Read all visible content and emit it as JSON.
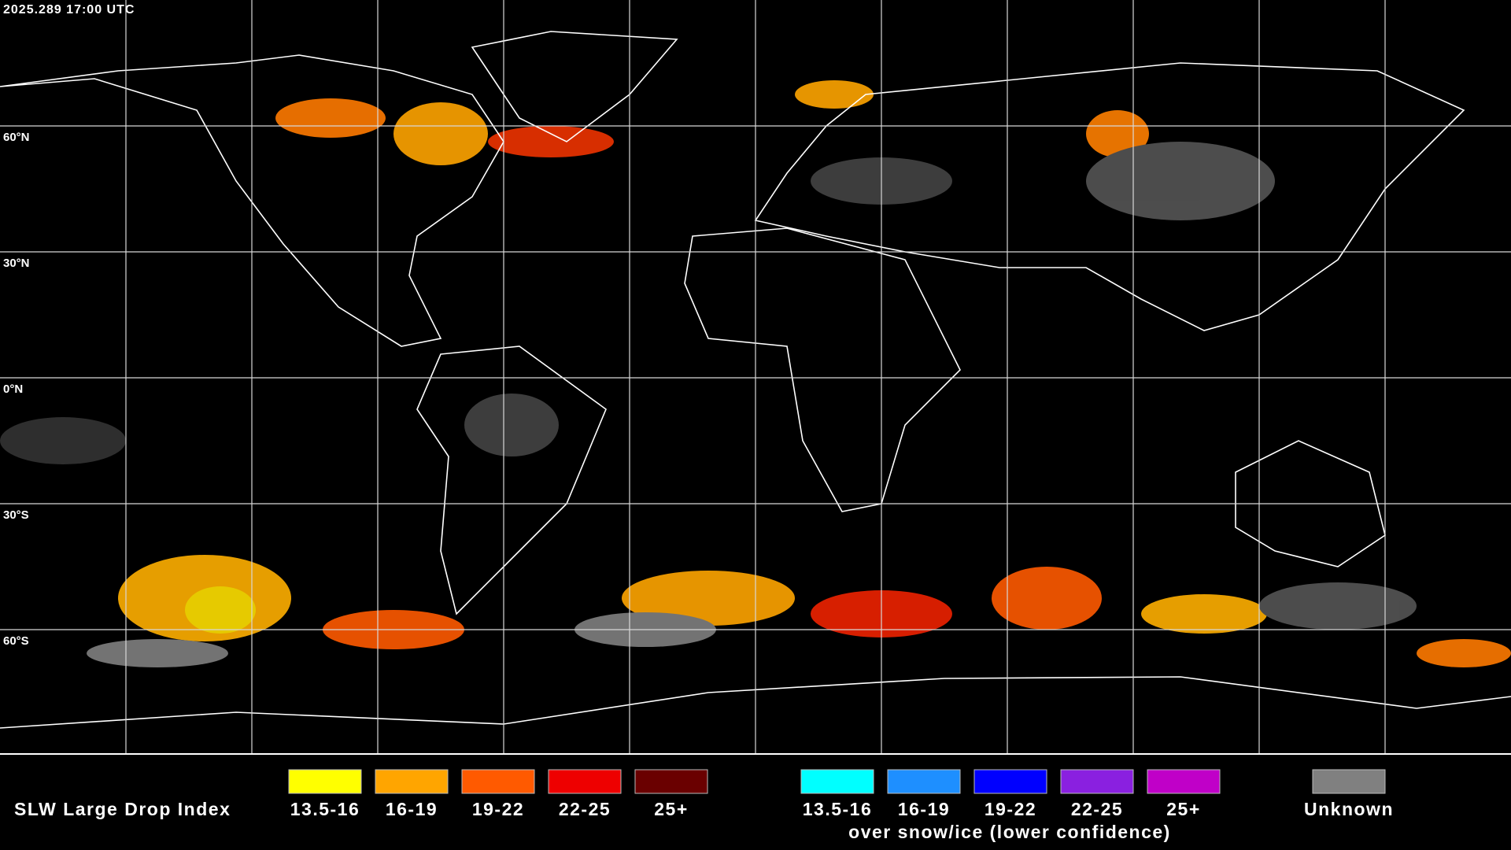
{
  "header": {
    "timestamp": "2025.289 17:00 UTC"
  },
  "map": {
    "latitude_labels": [
      "60°N",
      "30°N",
      "0°N",
      "30°S",
      "60°S"
    ]
  },
  "legend": {
    "title": "SLW Large Drop Index",
    "items": [
      {
        "label": "13.5-16",
        "color": "#ffff00"
      },
      {
        "label": "16-19",
        "color": "#ffa500"
      },
      {
        "label": "19-22",
        "color": "#ff5a00"
      },
      {
        "label": "22-25",
        "color": "#ee0000"
      },
      {
        "label": "25+",
        "color": "#6a0000"
      }
    ],
    "snow_items": [
      {
        "label": "13.5-16",
        "color": "#00ffff"
      },
      {
        "label": "16-19",
        "color": "#1e8fff"
      },
      {
        "label": "19-22",
        "color": "#0000ff"
      },
      {
        "label": "22-25",
        "color": "#8a20e0"
      },
      {
        "label": "25+",
        "color": "#c000c8"
      }
    ],
    "snow_caption": "over snow/ice (lower confidence)",
    "unknown": {
      "label": "Unknown",
      "color": "#808080"
    }
  }
}
